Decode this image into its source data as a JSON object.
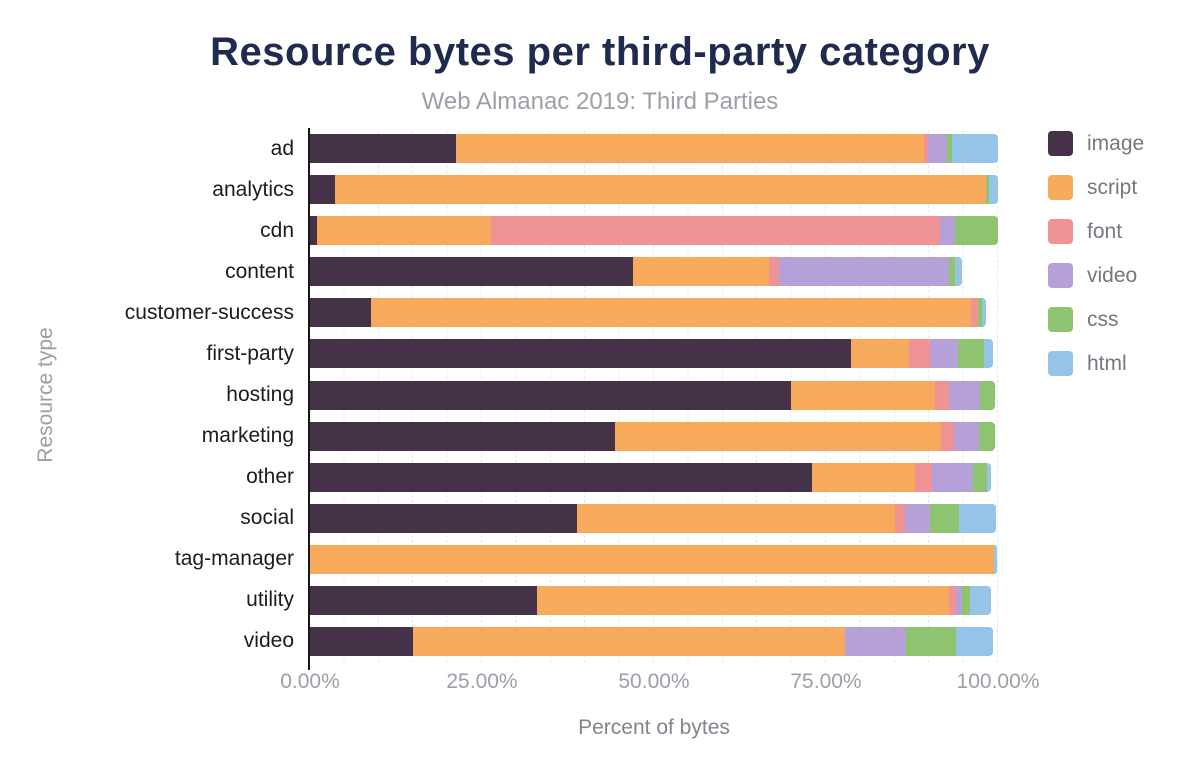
{
  "title": "Resource bytes per third-party category",
  "subtitle": "Web Almanac 2019: Third Parties",
  "x_axis_title": "Percent of bytes",
  "y_axis_title": "Resource type",
  "colors": {
    "image": "#453148",
    "script": "#f7a95c",
    "font": "#ef9395",
    "video": "#b5a1d8",
    "css": "#8ec46f",
    "html": "#96c3e8",
    "title_text": "#1f2b4e",
    "subtitle_text": "#9aa0a6",
    "axis_line": "#15151a"
  },
  "chart_data": {
    "type": "bar",
    "orientation": "horizontal",
    "stacked": true,
    "units": "percent",
    "xlim": [
      0,
      100
    ],
    "grid": "vertical dotted minor gridlines every 5%",
    "legend_position": "right",
    "x_ticks": [
      "0.00%",
      "25.00%",
      "50.00%",
      "75.00%",
      "100.00%"
    ],
    "x_tick_positions": [
      0,
      25,
      50,
      75,
      100
    ],
    "categories": [
      "ad",
      "analytics",
      "cdn",
      "content",
      "customer-success",
      "first-party",
      "hosting",
      "marketing",
      "other",
      "social",
      "tag-manager",
      "utility",
      "video"
    ],
    "legend": [
      "image",
      "script",
      "font",
      "video",
      "css",
      "html"
    ],
    "series": [
      {
        "name": "image",
        "values": [
          21.2,
          3.6,
          1.0,
          46.9,
          8.8,
          78.6,
          69.9,
          44.4,
          73.0,
          38.8,
          0,
          33.0,
          15.0
        ]
      },
      {
        "name": "script",
        "values": [
          68.0,
          94.6,
          25.3,
          19.8,
          87.3,
          8.5,
          20.9,
          47.3,
          14.9,
          46.2,
          99.4,
          59.9,
          62.8
        ]
      },
      {
        "name": "font",
        "values": [
          0.7,
          0,
          65.2,
          1.4,
          1.0,
          3.0,
          2.1,
          1.9,
          2.5,
          1.5,
          0,
          1.0,
          0
        ]
      },
      {
        "name": "video",
        "values": [
          2.7,
          0,
          2.3,
          24.8,
          0,
          4.1,
          4.5,
          3.7,
          6.0,
          3.6,
          0,
          0.8,
          8.9
        ]
      },
      {
        "name": "css",
        "values": [
          0.7,
          0.5,
          6.2,
          0.8,
          0.6,
          3.8,
          2.1,
          2.3,
          2.0,
          4.2,
          0,
          1.2,
          7.2
        ]
      },
      {
        "name": "html",
        "values": [
          6.7,
          1.3,
          0,
          1.1,
          0.5,
          1.3,
          0,
          0,
          0.6,
          5.4,
          0.5,
          3.1,
          5.4
        ]
      }
    ],
    "title": "Resource bytes per third-party category",
    "subtitle": "Web Almanac 2019: Third Parties",
    "xlabel": "Percent of bytes",
    "ylabel": "Resource type"
  }
}
